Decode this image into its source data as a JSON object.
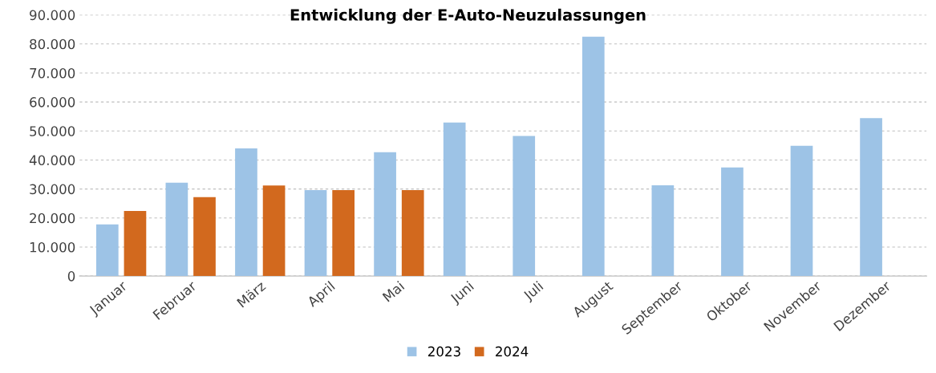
{
  "chart_data": {
    "type": "bar",
    "title": "Entwicklung der E-Auto-Neuzulassungen",
    "categories": [
      "Januar",
      "Februar",
      "März",
      "April",
      "Mai",
      "Juni",
      "Juli",
      "August",
      "September",
      "Oktober",
      "November",
      "Dezember"
    ],
    "series": [
      {
        "name": "2023",
        "color": "#9dc3e6",
        "values": [
          17800,
          32200,
          44000,
          29600,
          42700,
          52900,
          48300,
          82500,
          31300,
          37400,
          44900,
          54400
        ]
      },
      {
        "name": "2024",
        "color": "#d2691e",
        "values": [
          22400,
          27200,
          31200,
          29600,
          29600,
          null,
          null,
          null,
          null,
          null,
          null,
          null
        ]
      }
    ],
    "ylim": [
      0,
      90000
    ],
    "yticks": [
      {
        "value": 0,
        "label": "0"
      },
      {
        "value": 10000,
        "label": "10.000"
      },
      {
        "value": 20000,
        "label": "20.000"
      },
      {
        "value": 30000,
        "label": "30.000"
      },
      {
        "value": 40000,
        "label": "40.000"
      },
      {
        "value": 50000,
        "label": "50.000"
      },
      {
        "value": 60000,
        "label": "60.000"
      },
      {
        "value": 70000,
        "label": "70.000"
      },
      {
        "value": 80000,
        "label": "80.000"
      },
      {
        "value": 90000,
        "label": "90.000"
      }
    ],
    "grid": "y",
    "legend": "bottom"
  }
}
